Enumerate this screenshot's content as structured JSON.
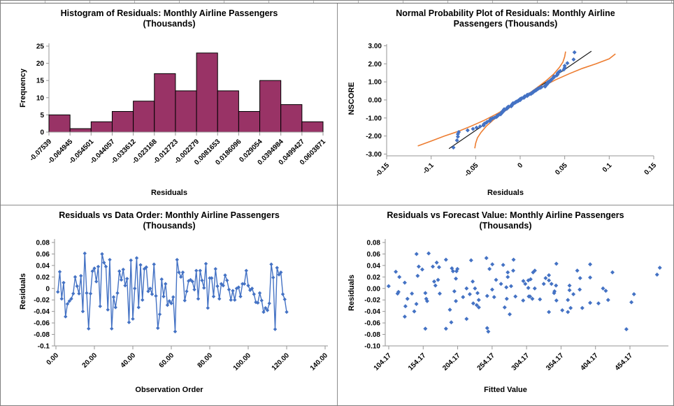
{
  "window": {
    "background": "#ffffff",
    "outer_border_color": "#808080",
    "divider_color": "#8c8c8c"
  },
  "colors": {
    "bar_fill": "#993366",
    "bar_stroke": "#000000",
    "point_blue": "#4472C4",
    "band_orange": "#ED7D31",
    "ref_line_black": "#1a1a1a",
    "axis_gray": "#969696",
    "text": "#000000"
  },
  "chart_data": [
    {
      "type": "bar",
      "id": "histogram-of-residuals",
      "title_line1": "Histogram of Residuals: Monthly Airline Passengers",
      "title_line2": "(Thousands)",
      "xlabel": "Residuals",
      "ylabel": "Frequency",
      "bin_edge_labels": [
        "-0.07539",
        "-0.064945",
        "-0.054501",
        "-0.044057",
        "-0.033612",
        "-0.023168",
        "-0.012723",
        "-0.002279",
        "0.0081653",
        "0.0186096",
        "0.029054",
        "0.0394984",
        "0.0499427",
        "0.0603871"
      ],
      "values": [
        5,
        1,
        3,
        6,
        9,
        17,
        12,
        23,
        12,
        6,
        15,
        8,
        3
      ],
      "y_ticks": [
        0,
        5,
        10,
        15,
        20,
        25
      ],
      "ylim": [
        0,
        25
      ],
      "grid": false,
      "legend": "none"
    },
    {
      "type": "scatter",
      "id": "normal-probability-plot",
      "title_line1": "Normal Probability Plot of Residuals: Monthly Airline",
      "title_line2": "Passengers (Thousands)",
      "xlabel": "Residuals",
      "ylabel": "NSCORE",
      "x_ticks": [
        -0.15,
        -0.1,
        -0.05,
        0,
        0.05,
        0.1,
        0.15
      ],
      "x_tick_labels": [
        "-0.15",
        "-0.1",
        "-0.05",
        "0",
        "0.05",
        "0.1",
        "0.15"
      ],
      "y_ticks": [
        3,
        2,
        1,
        0,
        -1,
        -2,
        -3
      ],
      "y_tick_labels": [
        "3.00",
        "2.00",
        "1.00",
        "0.00",
        "-1.00",
        "-2.00",
        "-3.00"
      ],
      "xlim": [
        -0.15,
        0.15
      ],
      "ylim": [
        -3,
        3
      ],
      "grid": false,
      "nscores_sorted": [
        -2.638,
        -2.241,
        -2.037,
        -1.893,
        -1.78,
        -1.687,
        -1.606,
        -1.534,
        -1.47,
        -1.41,
        -1.356,
        -1.305,
        -1.258,
        -1.213,
        -1.17,
        -1.13,
        -1.091,
        -1.054,
        -1.019,
        -0.984,
        -0.951,
        -0.919,
        -0.887,
        -0.857,
        -0.827,
        -0.798,
        -0.769,
        -0.741,
        -0.714,
        -0.687,
        -0.661,
        -0.635,
        -0.61,
        -0.585,
        -0.561,
        -0.536,
        -0.512,
        -0.489,
        -0.465,
        -0.442,
        -0.419,
        -0.397,
        -0.374,
        -0.352,
        -0.33,
        -0.308,
        -0.286,
        -0.264,
        -0.243,
        -0.221,
        -0.2,
        -0.179,
        -0.157,
        -0.136,
        -0.115,
        -0.094,
        -0.073,
        -0.052,
        -0.031,
        -0.01,
        0.01,
        0.031,
        0.052,
        0.073,
        0.094,
        0.115,
        0.136,
        0.157,
        0.179,
        0.2,
        0.221,
        0.243,
        0.264,
        0.286,
        0.308,
        0.33,
        0.352,
        0.374,
        0.397,
        0.419,
        0.442,
        0.465,
        0.489,
        0.512,
        0.536,
        0.561,
        0.585,
        0.61,
        0.635,
        0.661,
        0.687,
        0.714,
        0.741,
        0.769,
        0.798,
        0.827,
        0.857,
        0.887,
        0.919,
        0.951,
        0.984,
        1.019,
        1.054,
        1.091,
        1.13,
        1.17,
        1.213,
        1.258,
        1.305,
        1.356,
        1.41,
        1.47,
        1.534,
        1.606,
        1.687,
        1.78,
        1.893,
        2.037,
        2.241,
        2.638
      ],
      "reference_line": {
        "x1": -0.08,
        "y1": -2.7,
        "x2": 0.08,
        "y2": 2.7
      },
      "band_upper": [
        [
          -0.115,
          -2.55
        ],
        [
          -0.1,
          -2.28
        ],
        [
          -0.085,
          -2.0
        ],
        [
          -0.07,
          -1.75
        ],
        [
          -0.055,
          -1.45
        ],
        [
          -0.04,
          -1.12
        ],
        [
          -0.025,
          -0.74
        ],
        [
          -0.01,
          -0.3
        ],
        [
          0.005,
          0.18
        ],
        [
          0.02,
          0.72
        ],
        [
          0.03,
          1.1
        ],
        [
          0.038,
          1.45
        ],
        [
          0.044,
          1.8
        ],
        [
          0.048,
          2.1
        ],
        [
          0.05,
          2.4
        ],
        [
          0.051,
          2.68
        ]
      ],
      "band_lower": [
        [
          -0.051,
          -2.68
        ],
        [
          -0.05,
          -2.4
        ],
        [
          -0.048,
          -2.1
        ],
        [
          -0.044,
          -1.8
        ],
        [
          -0.038,
          -1.45
        ],
        [
          -0.03,
          -1.1
        ],
        [
          -0.02,
          -0.72
        ],
        [
          -0.005,
          -0.18
        ],
        [
          0.01,
          0.3
        ],
        [
          0.025,
          0.74
        ],
        [
          0.04,
          1.12
        ],
        [
          0.055,
          1.45
        ],
        [
          0.07,
          1.75
        ],
        [
          0.085,
          2.0
        ],
        [
          0.1,
          2.28
        ],
        [
          0.107,
          2.55
        ]
      ]
    },
    {
      "type": "line",
      "id": "residuals-vs-data-order",
      "title_line1": "Residuals vs Data Order: Monthly Airline Passengers",
      "title_line2": "(Thousands)",
      "xlabel": "Observation Order",
      "ylabel": "Residuals",
      "x_ticks": [
        0,
        20,
        40,
        60,
        80,
        100,
        120,
        140
      ],
      "x_tick_labels": [
        "0.00",
        "20.00",
        "40.00",
        "60.00",
        "80.00",
        "100.00",
        "120.00",
        "140.00"
      ],
      "y_ticks": [
        0.08,
        0.06,
        0.04,
        0.02,
        0,
        -0.02,
        -0.04,
        -0.06,
        -0.08,
        -0.1
      ],
      "y_tick_labels": [
        "0.08",
        "0.06",
        "0.04",
        "0.02",
        "0",
        "-0.02",
        "-0.04",
        "-0.06",
        "-0.08",
        "-0.1"
      ],
      "xlim": [
        0,
        140
      ],
      "ylim": [
        -0.1,
        0.08
      ],
      "grid": false,
      "residuals": [
        -0.006,
        0.029,
        -0.018,
        0.01,
        -0.049,
        -0.027,
        -0.022,
        -0.018,
        -0.009,
        0.02,
        0.004,
        -0.009,
        0.022,
        -0.04,
        0.061,
        -0.008,
        -0.07,
        -0.009,
        0.03,
        0.035,
        0.012,
        0.038,
        -0.031,
        0.06,
        0.045,
        0.038,
        -0.037,
        0.05,
        -0.07,
        -0.015,
        -0.033,
        -0.008,
        0.03,
        0.015,
        0.033,
        0.005,
        0.017,
        -0.059,
        0.049,
        -0.053,
        0.0,
        0.053,
        -0.033,
        0.041,
        -0.02,
        0.034,
        0.037,
        -0.005,
        0.0,
        -0.01,
        0.042,
        -0.013,
        -0.069,
        -0.045,
        0.016,
        -0.014,
        0.008,
        -0.029,
        -0.022,
        -0.026,
        -0.015,
        -0.075,
        0.05,
        0.028,
        0.02,
        0.028,
        -0.021,
        -0.005,
        0.013,
        0.015,
        0.012,
        -0.002,
        0.031,
        -0.018,
        0.031,
        0.014,
        0.001,
        0.043,
        -0.034,
        0.018,
        0.018,
        -0.014,
        0.034,
        0.004,
        -0.018,
        0.008,
        0.005,
        0.023,
        0.014,
        -0.002,
        -0.02,
        -0.004,
        -0.02,
        0.0,
        0.002,
        -0.014,
        0.008,
        0.008,
        0.031,
        0.005,
        -0.003,
        0.0,
        -0.01,
        -0.024,
        -0.025,
        -0.008,
        -0.021,
        -0.041,
        -0.034,
        -0.038,
        -0.026,
        0.042,
        0.019,
        -0.071,
        0.036,
        0.024,
        0.028,
        -0.01,
        -0.019,
        -0.041
      ]
    },
    {
      "type": "scatter",
      "id": "residuals-vs-forecast-value",
      "title_line1": "Residuals vs Forecast Value: Monthly Airline Passengers",
      "title_line2": "(Thousands)",
      "xlabel": "Fitted Value",
      "ylabel": "Residuals",
      "x_ticks": [
        104.17,
        154.17,
        204.17,
        254.17,
        304.17,
        354.17,
        404.17,
        454.17
      ],
      "x_tick_labels": [
        "104.17",
        "154.17",
        "204.17",
        "254.17",
        "304.17",
        "354.17",
        "404.17",
        "454.17"
      ],
      "y_ticks": [
        0.08,
        0.06,
        0.04,
        0.02,
        0,
        -0.02,
        -0.04,
        -0.06,
        -0.08,
        -0.1
      ],
      "y_tick_labels": [
        "0.08",
        "0.06",
        "0.04",
        "0.02",
        "0.00",
        "-0.02",
        "-0.04",
        "-0.06",
        "-0.08",
        "-0.10"
      ],
      "xlim": [
        104.17,
        510
      ],
      "ylim": [
        -0.1,
        0.08
      ],
      "grid": false,
      "fitted_values": [
        118.3,
        114.4,
        131.3,
        127.4,
        127.4,
        144.3,
        159.9,
        158.6,
        137.8,
        119.6,
        104.0,
        117.0,
        146.1,
        141.2,
        162.1,
        157.3,
        157.3,
        178.2,
        197.4,
        195.8,
        170.1,
        147.7,
        128.4,
        144.5,
        173.8,
        168.1,
        192.9,
        187.2,
        187.2,
        212.0,
        234.9,
        233.0,
        202.5,
        175.7,
        152.8,
        171.9,
        201.6,
        194.9,
        223.7,
        217.1,
        217.1,
        245.9,
        272.4,
        270.2,
        234.8,
        203.8,
        177.2,
        199.4,
        229.3,
        221.8,
        254.5,
        247.0,
        247.0,
        279.7,
        310.0,
        307.4,
        267.1,
        231.8,
        201.6,
        226.8,
        257.1,
        248.6,
        285.3,
        276.9,
        276.9,
        313.6,
        347.5,
        344.7,
        299.5,
        259.9,
        226.0,
        254.3,
        284.8,
        275.4,
        316.1,
        306.7,
        306.7,
        347.4,
        385.0,
        381.9,
        331.8,
        288.0,
        250.4,
        281.7,
        312.6,
        302.3,
        346.9,
        336.6,
        336.6,
        381.3,
        422.5,
        419.1,
        364.1,
        316.0,
        274.8,
        309.2,
        340.3,
        329.1,
        377.7,
        366.5,
        366.5,
        415.1,
        460.0,
        456.3,
        396.4,
        344.1,
        299.2,
        336.6,
        368.1,
        356.0,
        408.5,
        396.4,
        396.4,
        449.0,
        497.5,
        493.5,
        428.8,
        372.1,
        323.6,
        364.1
      ]
    }
  ]
}
